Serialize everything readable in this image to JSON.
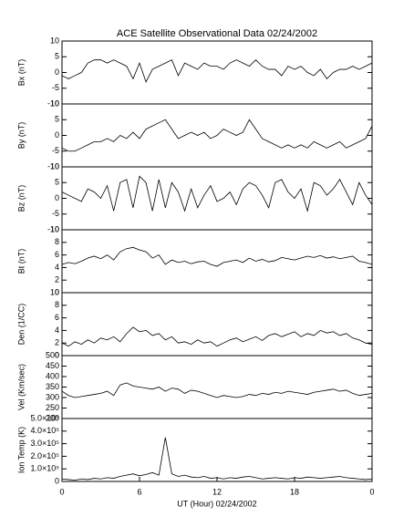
{
  "chart_data": [
    {
      "type": "line",
      "title": "ACE Satellite Observational Data   02/24/2002",
      "ylabel": "Bx (nT)",
      "x": [
        0,
        0.5,
        1,
        1.5,
        2,
        2.5,
        3,
        3.5,
        4,
        4.5,
        5,
        5.5,
        6,
        6.5,
        7,
        7.5,
        8,
        8.5,
        9,
        9.5,
        10,
        10.5,
        11,
        11.5,
        12,
        12.5,
        13,
        13.5,
        14,
        14.5,
        15,
        15.5,
        16,
        16.5,
        17,
        17.5,
        18,
        18.5,
        19,
        19.5,
        20,
        20.5,
        21,
        21.5,
        22,
        22.5,
        23,
        23.5,
        24
      ],
      "series": [
        {
          "color": "#000000",
          "values": [
            -1,
            -2,
            -1,
            0,
            3,
            4,
            4,
            3,
            4,
            3,
            2,
            -2,
            3,
            -3,
            1,
            2,
            3,
            4,
            -1,
            3,
            2,
            1,
            3,
            2,
            2,
            1,
            3,
            4,
            3,
            2,
            4,
            2,
            1,
            1,
            -1,
            2,
            1,
            2,
            0,
            -1,
            1,
            -2,
            0,
            1,
            1,
            2,
            1,
            2,
            3
          ]
        }
      ],
      "xlim": [
        0,
        24
      ],
      "ylim": [
        -10,
        10
      ],
      "yticks": [
        -10,
        -5,
        0,
        5,
        10
      ]
    },
    {
      "type": "line",
      "ylabel": "By (nT)",
      "x": [
        0,
        0.5,
        1,
        1.5,
        2,
        2.5,
        3,
        3.5,
        4,
        4.5,
        5,
        5.5,
        6,
        6.5,
        7,
        7.5,
        8,
        8.5,
        9,
        9.5,
        10,
        10.5,
        11,
        11.5,
        12,
        12.5,
        13,
        13.5,
        14,
        14.5,
        15,
        15.5,
        16,
        16.5,
        17,
        17.5,
        18,
        18.5,
        19,
        19.5,
        20,
        20.5,
        21,
        21.5,
        22,
        22.5,
        23,
        23.5,
        24
      ],
      "series": [
        {
          "color": "#000000",
          "values": [
            -4,
            -5,
            -5,
            -4,
            -3,
            -2,
            -2,
            -1,
            -2,
            0,
            -1,
            1,
            -1,
            2,
            3,
            4,
            5,
            2,
            -1,
            0,
            1,
            0,
            1,
            -1,
            0,
            2,
            1,
            0,
            1,
            5,
            2,
            -1,
            -2,
            -3,
            -4,
            -3,
            -4,
            -3,
            -4,
            -2,
            -3,
            -4,
            -3,
            -2,
            -4,
            -3,
            -2,
            -1,
            3
          ]
        }
      ],
      "xlim": [
        0,
        24
      ],
      "ylim": [
        -10,
        10
      ],
      "yticks": [
        -10,
        -5,
        0,
        5,
        10
      ]
    },
    {
      "type": "line",
      "ylabel": "Bz (nT)",
      "x": [
        0,
        0.5,
        1,
        1.5,
        2,
        2.5,
        3,
        3.5,
        4,
        4.5,
        5,
        5.5,
        6,
        6.5,
        7,
        7.5,
        8,
        8.5,
        9,
        9.5,
        10,
        10.5,
        11,
        11.5,
        12,
        12.5,
        13,
        13.5,
        14,
        14.5,
        15,
        15.5,
        16,
        16.5,
        17,
        17.5,
        18,
        18.5,
        19,
        19.5,
        20,
        20.5,
        21,
        21.5,
        22,
        22.5,
        23,
        23.5,
        24
      ],
      "series": [
        {
          "color": "#000000",
          "values": [
            2,
            1,
            0,
            -1,
            3,
            2,
            0,
            4,
            -4,
            5,
            6,
            -3,
            7,
            5,
            -4,
            6,
            -3,
            5,
            2,
            -4,
            3,
            -3,
            1,
            4,
            -1,
            0,
            2,
            -2,
            3,
            5,
            4,
            1,
            -3,
            5,
            6,
            2,
            0,
            3,
            -4,
            5,
            4,
            1,
            3,
            6,
            2,
            -2,
            5,
            1,
            -2
          ]
        }
      ],
      "xlim": [
        0,
        24
      ],
      "ylim": [
        -10,
        10
      ],
      "yticks": [
        -10,
        -5,
        0,
        5,
        10
      ]
    },
    {
      "type": "line",
      "ylabel": "Bt (nT)",
      "x": [
        0,
        0.5,
        1,
        1.5,
        2,
        2.5,
        3,
        3.5,
        4,
        4.5,
        5,
        5.5,
        6,
        6.5,
        7,
        7.5,
        8,
        8.5,
        9,
        9.5,
        10,
        10.5,
        11,
        11.5,
        12,
        12.5,
        13,
        13.5,
        14,
        14.5,
        15,
        15.5,
        16,
        16.5,
        17,
        17.5,
        18,
        18.5,
        19,
        19.5,
        20,
        20.5,
        21,
        21.5,
        22,
        22.5,
        23,
        23.5,
        24
      ],
      "series": [
        {
          "color": "#000000",
          "values": [
            4.5,
            4.8,
            4.6,
            5,
            5.5,
            5.8,
            5.4,
            6,
            5.2,
            6.5,
            7,
            7.2,
            6.8,
            6.5,
            5.5,
            6,
            4.5,
            5.2,
            4.8,
            5,
            4.6,
            4.9,
            5,
            4.5,
            4.2,
            4.8,
            5,
            5.2,
            4.8,
            5.5,
            5,
            5.3,
            4.9,
            5.1,
            5.6,
            5.4,
            5.2,
            5.5,
            5.8,
            5.6,
            5.9,
            5.5,
            5.7,
            5.4,
            5.6,
            5.8,
            5,
            4.8,
            4.5
          ]
        }
      ],
      "xlim": [
        0,
        24
      ],
      "ylim": [
        0,
        10
      ],
      "yticks": [
        0,
        2,
        4,
        6,
        8,
        10
      ]
    },
    {
      "type": "line",
      "ylabel": "Den (1/CC)",
      "x": [
        0,
        0.5,
        1,
        1.5,
        2,
        2.5,
        3,
        3.5,
        4,
        4.5,
        5,
        5.5,
        6,
        6.5,
        7,
        7.5,
        8,
        8.5,
        9,
        9.5,
        10,
        10.5,
        11,
        11.5,
        12,
        12.5,
        13,
        13.5,
        14,
        14.5,
        15,
        15.5,
        16,
        16.5,
        17,
        17.5,
        18,
        18.5,
        19,
        19.5,
        20,
        20.5,
        21,
        21.5,
        22,
        22.5,
        23,
        23.5,
        24
      ],
      "series": [
        {
          "color": "#000000",
          "values": [
            2,
            1.5,
            2.2,
            1.8,
            2.5,
            2,
            2.8,
            2.5,
            3,
            2.2,
            3.5,
            4.5,
            3.8,
            4,
            3.2,
            3.5,
            2.5,
            3,
            2,
            2.2,
            1.8,
            2.5,
            2,
            2.2,
            1.5,
            2,
            2.5,
            2.8,
            2.2,
            2.6,
            3,
            2.4,
            3.2,
            3.5,
            3,
            3.4,
            3.8,
            3,
            3.5,
            3.2,
            4,
            3.6,
            3.8,
            3.2,
            3.5,
            2.8,
            2.5,
            2,
            1.8
          ]
        }
      ],
      "xlim": [
        0,
        24
      ],
      "ylim": [
        0,
        10
      ],
      "yticks": [
        0,
        2,
        4,
        6,
        8,
        10
      ]
    },
    {
      "type": "line",
      "ylabel": "Vel (Km/sec)",
      "x": [
        0,
        0.5,
        1,
        1.5,
        2,
        2.5,
        3,
        3.5,
        4,
        4.5,
        5,
        5.5,
        6,
        6.5,
        7,
        7.5,
        8,
        8.5,
        9,
        9.5,
        10,
        10.5,
        11,
        11.5,
        12,
        12.5,
        13,
        13.5,
        14,
        14.5,
        15,
        15.5,
        16,
        16.5,
        17,
        17.5,
        18,
        18.5,
        19,
        19.5,
        20,
        20.5,
        21,
        21.5,
        22,
        22.5,
        23,
        23.5,
        24
      ],
      "series": [
        {
          "color": "#000000",
          "values": [
            330,
            310,
            300,
            305,
            310,
            315,
            320,
            330,
            310,
            360,
            370,
            355,
            350,
            345,
            340,
            350,
            330,
            345,
            340,
            320,
            335,
            330,
            320,
            310,
            300,
            310,
            305,
            300,
            305,
            315,
            310,
            320,
            315,
            325,
            320,
            330,
            325,
            320,
            315,
            325,
            330,
            335,
            340,
            330,
            335,
            320,
            310,
            315,
            320
          ]
        }
      ],
      "xlim": [
        0,
        24
      ],
      "ylim": [
        200,
        500
      ],
      "yticks": [
        200,
        250,
        300,
        350,
        400,
        450,
        500
      ]
    },
    {
      "type": "line",
      "ylabel": "Ion Temp (K)",
      "xlabel": "UT (Hour)  02/24/2002",
      "x": [
        0,
        0.5,
        1,
        1.5,
        2,
        2.5,
        3,
        3.5,
        4,
        4.5,
        5,
        5.5,
        6,
        6.5,
        7,
        7.5,
        8,
        8.5,
        9,
        9.5,
        10,
        10.5,
        11,
        11.5,
        12,
        12.5,
        13,
        13.5,
        14,
        14.5,
        15,
        15.5,
        16,
        16.5,
        17,
        17.5,
        18,
        18.5,
        19,
        19.5,
        20,
        20.5,
        21,
        21.5,
        22,
        22.5,
        23,
        23.5,
        24
      ],
      "series": [
        {
          "color": "#000000",
          "values": [
            20000,
            15000,
            10000,
            20000,
            15000,
            25000,
            20000,
            30000,
            25000,
            40000,
            50000,
            60000,
            45000,
            55000,
            70000,
            50000,
            350000,
            60000,
            40000,
            50000,
            35000,
            30000,
            40000,
            25000,
            30000,
            20000,
            30000,
            25000,
            35000,
            40000,
            30000,
            20000,
            25000,
            30000,
            25000,
            20000,
            30000,
            25000,
            35000,
            30000,
            25000,
            30000,
            35000,
            40000,
            30000,
            25000,
            20000,
            15000,
            20000
          ]
        }
      ],
      "xlim": [
        0,
        24
      ],
      "ylim": [
        0,
        500000
      ],
      "yticks": [
        0,
        {
          "value": 100000,
          "label": "1.0×10⁵"
        },
        {
          "value": 200000,
          "label": "2.0×10⁵"
        },
        {
          "value": 300000,
          "label": "3.0×10⁵"
        },
        {
          "value": 400000,
          "label": "4.0×10⁵"
        },
        {
          "value": 500000,
          "label": "5.0×10⁵"
        }
      ],
      "xticks": [
        0,
        6,
        12,
        18,
        {
          "value": 24,
          "label": "0"
        }
      ]
    }
  ]
}
